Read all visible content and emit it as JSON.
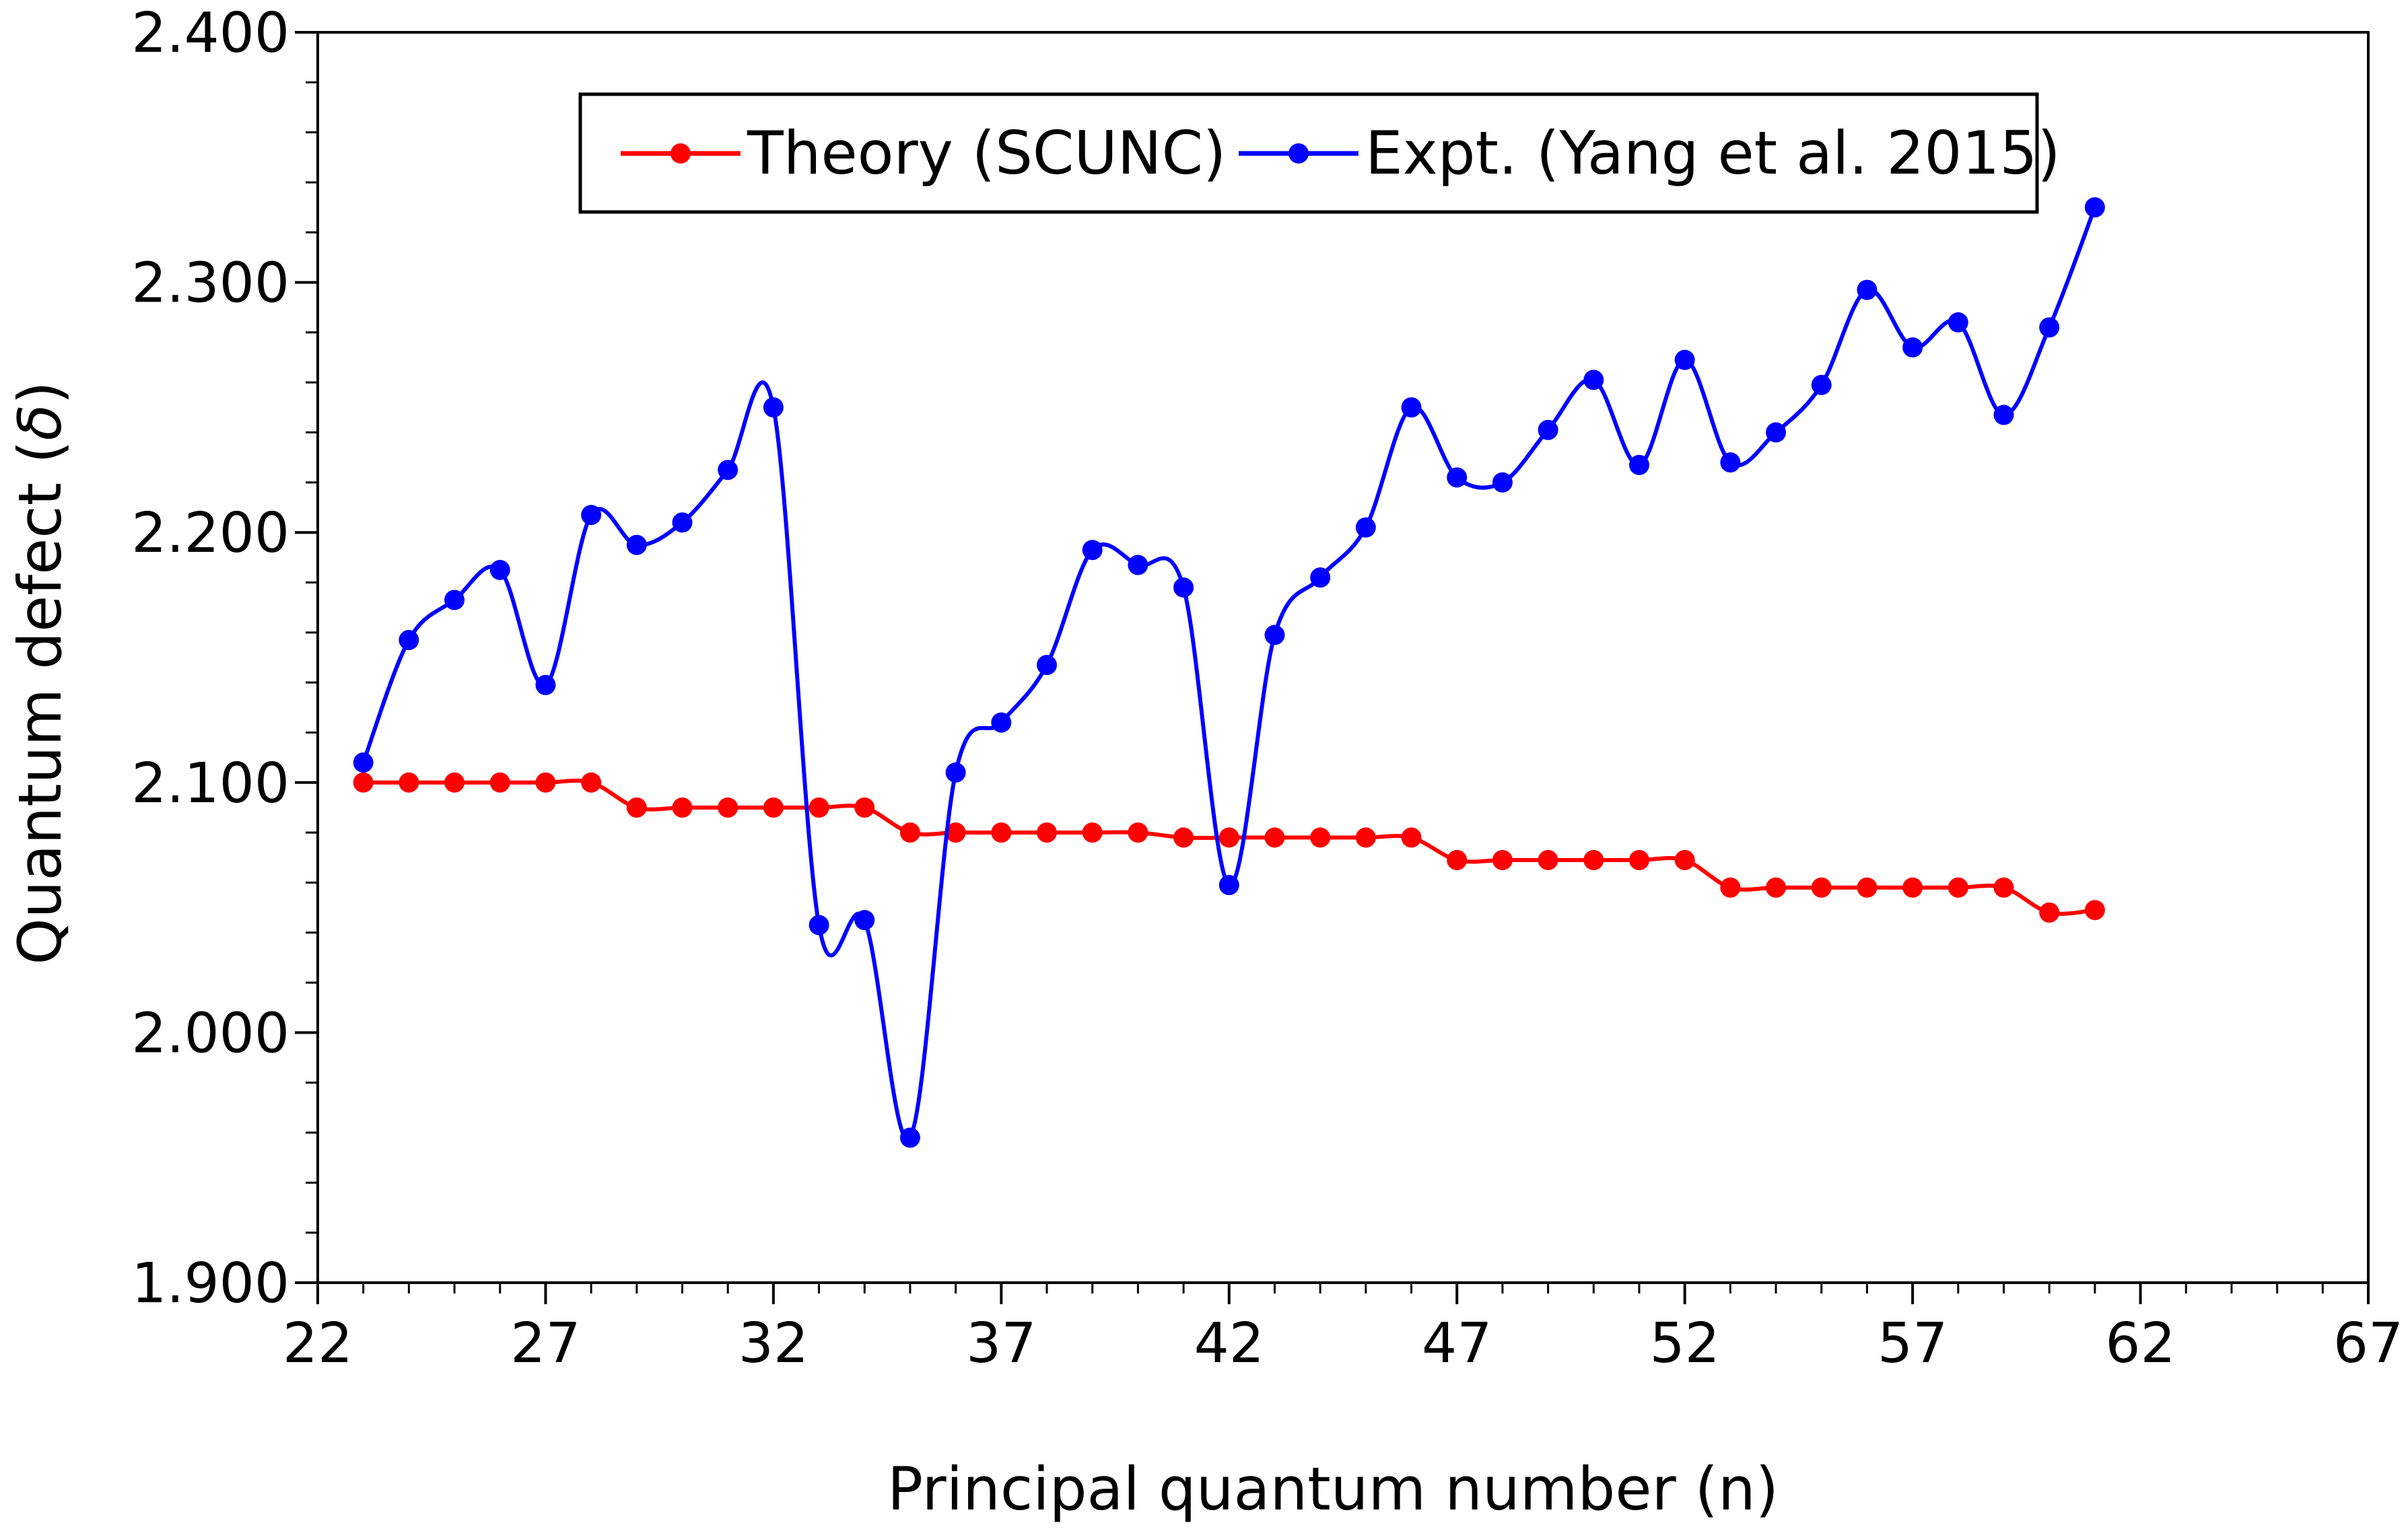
{
  "chart_data": {
    "type": "line",
    "title": "",
    "xlabel": "Principal quantum number (n)",
    "ylabel": "Quantum defect (",
    "ylabel_symbol": "δ",
    "ylabel_close": ")",
    "xlim": [
      22,
      67
    ],
    "ylim": [
      1.9,
      2.4
    ],
    "x_ticks": [
      22,
      27,
      32,
      37,
      42,
      47,
      52,
      57,
      62,
      67
    ],
    "x_tick_labels": [
      "22",
      "27",
      "32",
      "37",
      "42",
      "47",
      "52",
      "57",
      "62",
      "67"
    ],
    "y_ticks": [
      1.9,
      2.0,
      2.1,
      2.2,
      2.3,
      2.4
    ],
    "y_tick_labels": [
      "1.900",
      "2.000",
      "2.100",
      "2.200",
      "2.300",
      "2.400"
    ],
    "y_minor_step": 0.02,
    "x_minor_step": 1,
    "grid": false,
    "legend_position": "top-center",
    "x": [
      23,
      24,
      25,
      26,
      27,
      28,
      29,
      30,
      31,
      32,
      33,
      34,
      35,
      36,
      37,
      38,
      39,
      40,
      41,
      42,
      43,
      44,
      45,
      46,
      47,
      48,
      49,
      50,
      51,
      52,
      53,
      54,
      55,
      56,
      57,
      58,
      59,
      60,
      61
    ],
    "series": [
      {
        "name": "Theory (SCUNC)",
        "color": "#ff0000",
        "values": [
          2.1,
          2.1,
          2.1,
          2.1,
          2.1,
          2.1,
          2.09,
          2.09,
          2.09,
          2.09,
          2.09,
          2.09,
          2.08,
          2.08,
          2.08,
          2.08,
          2.08,
          2.08,
          2.078,
          2.078,
          2.078,
          2.078,
          2.078,
          2.078,
          2.069,
          2.069,
          2.069,
          2.069,
          2.069,
          2.069,
          2.058,
          2.058,
          2.058,
          2.058,
          2.058,
          2.058,
          2.058,
          2.048,
          2.049
        ]
      },
      {
        "name": "Expt. (Yang et al. 2015)",
        "color": "#0000ff",
        "values": [
          2.108,
          2.157,
          2.173,
          2.185,
          2.139,
          2.207,
          2.195,
          2.204,
          2.225,
          2.25,
          2.043,
          2.045,
          1.958,
          2.104,
          2.124,
          2.147,
          2.193,
          2.187,
          2.178,
          2.059,
          2.159,
          2.182,
          2.202,
          2.25,
          2.222,
          2.22,
          2.241,
          2.261,
          2.227,
          2.269,
          2.228,
          2.24,
          2.259,
          2.297,
          2.274,
          2.284,
          2.247,
          2.282,
          2.33
        ]
      }
    ]
  }
}
